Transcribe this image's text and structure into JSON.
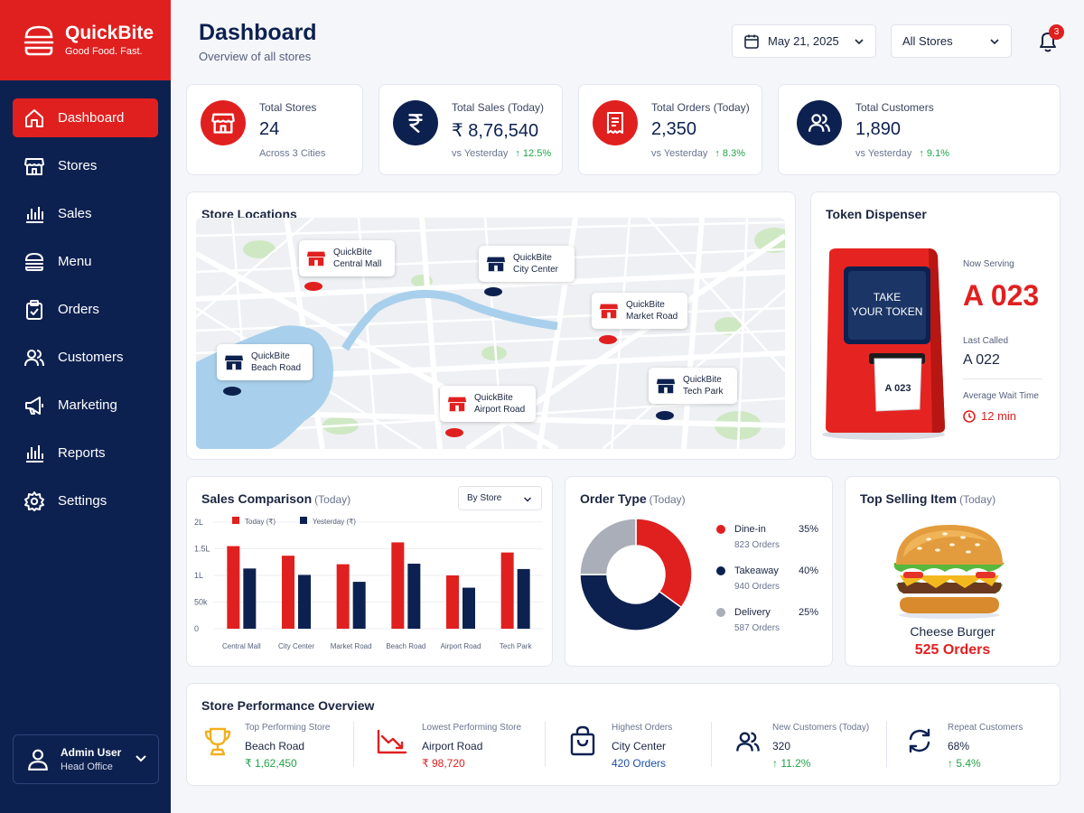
{
  "brand": {
    "name": "QuickBite",
    "tagline": "Good Food. Fast."
  },
  "nav": [
    {
      "label": "Dashboard",
      "icon": "home-icon",
      "active": true
    },
    {
      "label": "Stores",
      "icon": "store-icon"
    },
    {
      "label": "Sales",
      "icon": "bar-chart-icon"
    },
    {
      "label": "Menu",
      "icon": "burger-icon"
    },
    {
      "label": "Orders",
      "icon": "clipboard-icon"
    },
    {
      "label": "Customers",
      "icon": "users-icon"
    },
    {
      "label": "Marketing",
      "icon": "megaphone-icon"
    },
    {
      "label": "Reports",
      "icon": "reports-icon"
    },
    {
      "label": "Settings",
      "icon": "gear-icon"
    }
  ],
  "user": {
    "name": "Admin User",
    "role": "Head Office"
  },
  "header": {
    "title": "Dashboard",
    "subtitle": "Overview of all stores",
    "date": "May 21, 2025",
    "store_filter": "All Stores",
    "notifications": "3"
  },
  "kpis": [
    {
      "label": "Total Stores",
      "value": "24",
      "note": "Across 3 Cities",
      "change": ""
    },
    {
      "label": "Total Sales (Today)",
      "value": "₹ 8,76,540",
      "note": "vs Yesterday",
      "change": "↑ 12.5%"
    },
    {
      "label": "Total Orders (Today)",
      "value": "2,350",
      "note": "vs Yesterday",
      "change": "↑ 8.3%"
    },
    {
      "label": "Total Customers",
      "value": "1,890",
      "note": "vs Yesterday",
      "change": "↑ 9.1%"
    }
  ],
  "map": {
    "title": "Store Locations",
    "stores": [
      {
        "name": "QuickBite",
        "place": "Central Mall",
        "color": "#e0201f"
      },
      {
        "name": "QuickBite",
        "place": "City Center",
        "color": "#0d2150"
      },
      {
        "name": "QuickBite",
        "place": "Market Road",
        "color": "#e0201f"
      },
      {
        "name": "QuickBite",
        "place": "Beach Road",
        "color": "#0d2150"
      },
      {
        "name": "QuickBite",
        "place": "Airport Road",
        "color": "#e0201f"
      },
      {
        "name": "QuickBite",
        "place": "Tech Park",
        "color": "#0d2150"
      }
    ]
  },
  "token": {
    "title": "Token Dispenser",
    "screen_line1": "TAKE",
    "screen_line2": "YOUR TOKEN",
    "ticket": "A 023",
    "now_serving_label": "Now Serving",
    "now_serving": "A 023",
    "last_called_label": "Last Called",
    "last_called": "A 022",
    "wait_label": "Average Wait Time",
    "wait": "12 min"
  },
  "sales": {
    "title": "Sales Comparison",
    "title_sub": "(Today)",
    "filter": "By Store"
  },
  "order_type": {
    "title": "Order Type",
    "title_sub": "(Today)",
    "items": [
      {
        "name": "Dine-in",
        "pct": "35%",
        "count": "823 Orders",
        "color": "#e0201f"
      },
      {
        "name": "Takeaway",
        "pct": "40%",
        "count": "940 Orders",
        "color": "#0d2150"
      },
      {
        "name": "Delivery",
        "pct": "25%",
        "count": "587 Orders",
        "color": "#a9aeb8"
      }
    ]
  },
  "top_item": {
    "title": "Top Selling Item",
    "title_sub": "(Today)",
    "name": "Cheese Burger",
    "orders": "525 Orders"
  },
  "performance": {
    "title": "Store Performance Overview",
    "items": [
      {
        "label": "Top Performing Store",
        "main": "Beach Road",
        "sub": "₹ 1,62,450",
        "icon": "trophy-icon"
      },
      {
        "label": "Lowest Performing Store",
        "main": "Airport Road",
        "sub": "₹ 98,720",
        "icon": "trend-down-icon"
      },
      {
        "label": "Highest Orders",
        "main": "City Center",
        "sub": "420 Orders",
        "icon": "shopping-bag-icon"
      },
      {
        "label": "New Customers (Today)",
        "main": "320",
        "sub": "↑ 11.2%",
        "icon": "users-icon"
      },
      {
        "label": "Repeat Customers",
        "main": "68%",
        "sub": "↑ 5.4%",
        "icon": "repeat-icon"
      }
    ]
  },
  "colors": {
    "brand_red": "#e0201f",
    "navy": "#0d2150",
    "positive": "#22a34a",
    "grey": "#a9aeb8"
  },
  "chart_data": {
    "type": "bar",
    "categories": [
      "Central Mall",
      "City Center",
      "Market Road",
      "Beach Road",
      "Airport Road",
      "Tech Park"
    ],
    "series": [
      {
        "name": "Today (₹)",
        "color": "#e0201f",
        "values": [
          155000,
          137000,
          121000,
          162000,
          100000,
          143000
        ]
      },
      {
        "name": "Yesterday (₹)",
        "color": "#0d2150",
        "values": [
          113000,
          101000,
          88000,
          122000,
          77000,
          112000
        ]
      }
    ],
    "yticks": [
      "0",
      "50k",
      "1L",
      "1.5L",
      "2L"
    ],
    "ytick_values": [
      0,
      50000,
      100000,
      150000,
      200000
    ],
    "ylim": [
      0,
      200000
    ],
    "grid": true,
    "legend": "top"
  }
}
